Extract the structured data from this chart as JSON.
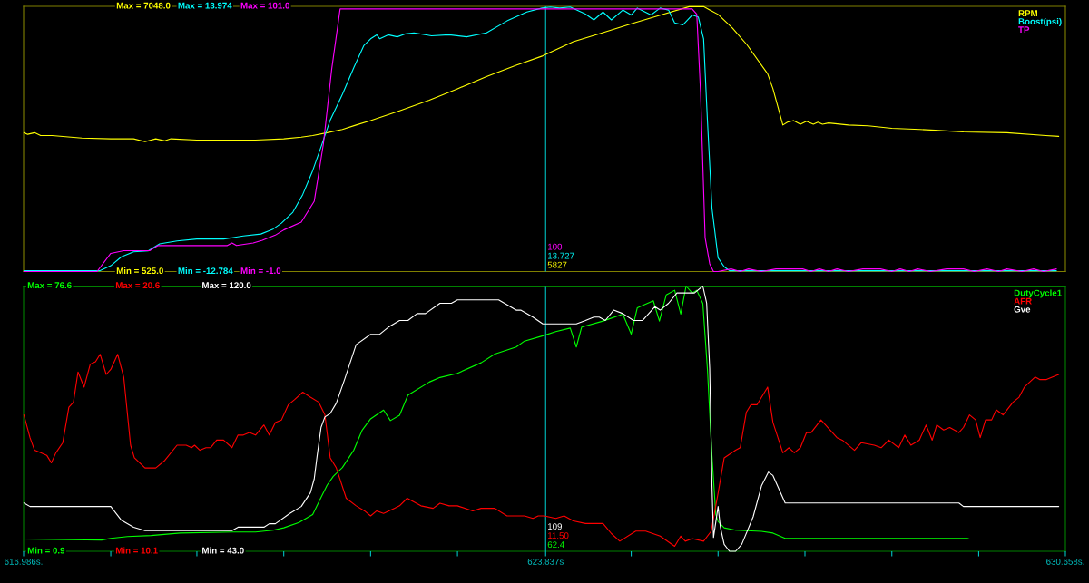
{
  "chart_data": [
    {
      "type": "line",
      "legend": "top right",
      "tick_labels": "y",
      "xlim": [
        616.986,
        630.658
      ],
      "ylim": [
        525,
        7048
      ],
      "yticks": [
        {
          "value": 525,
          "label": "Min = 525.0"
        },
        {
          "value": 7048,
          "label": "Max = 7048.0"
        }
      ],
      "y2lim": [
        -12.784,
        13.974
      ],
      "y2ticks": [
        {
          "value": -12.784,
          "label": "Min = -12.784"
        },
        {
          "value": 13.974,
          "label": "Max = 13.974"
        }
      ],
      "y3lim": [
        -1,
        101
      ],
      "y3ticks": [
        {
          "value": -1,
          "label": "Min = -1.0"
        },
        {
          "value": 101,
          "label": "Max = 101.0"
        }
      ],
      "ref_lines": [
        {
          "axis": "x",
          "value": 623.837,
          "color": "#00c0c0"
        }
      ],
      "annotations": [
        "100",
        "13.727",
        "5827"
      ],
      "series": [
        {
          "name": "RPM",
          "color": "#ffff00",
          "x": [
            616.99,
            617.04,
            617.13,
            617.21,
            617.36,
            617.75,
            618.13,
            618.43,
            618.58,
            618.72,
            618.84,
            618.92,
            619.26,
            620.03,
            620.4,
            620.63,
            620.78,
            620.97,
            621.17,
            621.35,
            621.54,
            621.92,
            622.31,
            622.68,
            623.06,
            623.45,
            623.8,
            624.2,
            624.59,
            624.96,
            625.34,
            625.72,
            625.91,
            625.99,
            626.1,
            626.29,
            626.48,
            626.75,
            626.82,
            626.95,
            627.01,
            627.09,
            627.18,
            627.26,
            627.35,
            627.41,
            627.47,
            627.55,
            627.81,
            628.07,
            628.38,
            628.75,
            628.95,
            629.32,
            629.89,
            630.4,
            630.57
          ],
          "values": [
            3940,
            3900,
            3940,
            3870,
            3870,
            3810,
            3790,
            3790,
            3720,
            3790,
            3740,
            3790,
            3760,
            3760,
            3790,
            3830,
            3870,
            3940,
            4020,
            4130,
            4240,
            4480,
            4740,
            5020,
            5320,
            5600,
            5830,
            6180,
            6400,
            6620,
            6830,
            7040,
            7040,
            6960,
            6850,
            6510,
            6100,
            5390,
            5020,
            4130,
            4200,
            4240,
            4150,
            4220,
            4150,
            4200,
            4150,
            4180,
            4130,
            4110,
            4050,
            4020,
            4000,
            3960,
            3940,
            3870,
            3850
          ]
        },
        {
          "name": "Boost(psi)",
          "color": "#00ffff",
          "axis": "y2",
          "x": [
            616.99,
            617.99,
            618.13,
            618.27,
            618.43,
            618.62,
            618.77,
            619.0,
            619.26,
            619.61,
            619.87,
            620.1,
            620.26,
            620.37,
            620.52,
            620.65,
            620.78,
            620.89,
            621.01,
            621.17,
            621.32,
            621.45,
            621.54,
            621.62,
            621.66,
            621.77,
            621.89,
            622.0,
            622.11,
            622.34,
            622.57,
            622.8,
            623.06,
            623.33,
            623.59,
            623.79,
            623.9,
            624.02,
            624.16,
            624.36,
            624.47,
            624.59,
            624.7,
            624.85,
            624.96,
            625.04,
            625.22,
            625.34,
            625.45,
            625.53,
            625.64,
            625.76,
            625.84,
            625.91,
            625.96,
            626.02,
            626.1,
            626.18,
            626.25,
            630.54
          ],
          "values": [
            -12.7,
            -12.7,
            -12.2,
            -11.3,
            -10.8,
            -10.7,
            -10.0,
            -9.7,
            -9.5,
            -9.5,
            -9.2,
            -9.0,
            -8.5,
            -7.9,
            -6.8,
            -5.0,
            -2.6,
            -0.2,
            2.5,
            5.1,
            7.8,
            10.0,
            10.7,
            11.1,
            10.7,
            11.1,
            10.9,
            11.2,
            11.3,
            11.0,
            11.1,
            10.9,
            11.3,
            12.5,
            13.4,
            13.8,
            13.9,
            13.8,
            13.9,
            13.2,
            12.6,
            13.4,
            12.6,
            13.6,
            13.1,
            13.8,
            13.1,
            13.8,
            13.6,
            12.3,
            12.1,
            13.1,
            12.9,
            10.7,
            2.5,
            -6.4,
            -11.4,
            -12.3,
            -12.7,
            -12.7
          ]
        },
        {
          "name": "TP",
          "color": "#ff00ff",
          "axis": "y3",
          "x": [
            616.99,
            617.95,
            618.13,
            618.3,
            618.64,
            618.75,
            619.66,
            619.72,
            619.78,
            620.0,
            620.12,
            620.29,
            620.4,
            620.63,
            620.8,
            620.92,
            621.03,
            621.14,
            625.76,
            625.82,
            625.87,
            625.93,
            625.99,
            626.04,
            626.1,
            626.27,
            626.39,
            626.5,
            626.67,
            626.86,
            627.21,
            627.32,
            627.43,
            627.55,
            627.66,
            627.81,
            628.0,
            628.23,
            628.38,
            628.49,
            628.61,
            628.72,
            628.89,
            629.1,
            629.32,
            629.46,
            629.63,
            629.78,
            629.89,
            630.09,
            630.24,
            630.37,
            630.54
          ],
          "values": [
            -1,
            -1,
            6,
            7,
            7,
            9,
            9,
            10,
            9,
            10,
            11,
            13,
            15,
            18,
            26,
            48,
            77,
            100,
            100,
            98,
            68,
            12,
            2,
            -1,
            -1,
            0,
            -1,
            0,
            -1,
            0,
            0,
            -1,
            0,
            -1,
            0,
            -1,
            0,
            0,
            -1,
            0,
            -1,
            0,
            -1,
            0,
            0,
            -1,
            0,
            -1,
            0,
            -1,
            0,
            -1,
            0
          ]
        }
      ]
    },
    {
      "type": "line",
      "legend": "top right",
      "xlim": [
        616.986,
        630.658
      ],
      "xticks": [
        {
          "value": 616.986,
          "label": "616.986s."
        },
        {
          "value": 618.13,
          "label": null
        },
        {
          "value": 619.26,
          "label": null
        },
        {
          "value": 620.4,
          "label": null
        },
        {
          "value": 621.54,
          "label": null
        },
        {
          "value": 622.68,
          "label": null
        },
        {
          "value": 623.837,
          "label": "623.837s"
        },
        {
          "value": 624.96,
          "label": null
        },
        {
          "value": 626.1,
          "label": null
        },
        {
          "value": 627.24,
          "label": null
        },
        {
          "value": 628.38,
          "label": null
        },
        {
          "value": 629.52,
          "label": null
        },
        {
          "value": 630.658,
          "label": "630.658s."
        }
      ],
      "ylim": [
        0.9,
        76.6
      ],
      "yticks": [
        {
          "value": 0.9,
          "label": "Min = 0.9"
        },
        {
          "value": 76.6,
          "label": "Max = 76.6"
        }
      ],
      "y2lim": [
        10.1,
        20.6
      ],
      "y2ticks": [
        {
          "value": 10.1,
          "label": "Min = 10.1"
        },
        {
          "value": 20.6,
          "label": "Max = 20.6"
        }
      ],
      "y3lim": [
        43,
        120
      ],
      "y3ticks": [
        {
          "value": 43,
          "label": "Min = 43.0"
        },
        {
          "value": 120,
          "label": "Max = 120.0"
        }
      ],
      "ref_lines": [
        {
          "axis": "x",
          "value": 623.837,
          "color": "#00c0c0"
        }
      ],
      "annotations": [
        "109",
        "11.50",
        "62.4"
      ],
      "series": [
        {
          "name": "DutyCycle1",
          "color": "#00ff00",
          "x": [
            616.99,
            618.01,
            618.13,
            618.35,
            618.66,
            619.04,
            619.72,
            620.03,
            620.26,
            620.4,
            620.6,
            620.78,
            620.89,
            620.97,
            621.05,
            621.17,
            621.32,
            621.43,
            621.54,
            621.71,
            621.8,
            621.92,
            622.03,
            622.31,
            622.45,
            622.68,
            622.99,
            623.17,
            623.45,
            623.56,
            623.8,
            623.97,
            624.16,
            624.24,
            624.31,
            624.59,
            624.85,
            624.96,
            625.04,
            625.25,
            625.33,
            625.42,
            625.53,
            625.61,
            625.68,
            625.76,
            625.82,
            625.9,
            625.96,
            626.02,
            626.07,
            626.1,
            626.18,
            626.33,
            626.67,
            626.82,
            626.98,
            629.37,
            629.4,
            630.57
          ],
          "values": [
            4.4,
            4.1,
            4.6,
            5.1,
            5.4,
            6.1,
            6.4,
            6.4,
            6.9,
            7.6,
            9.1,
            11.4,
            16.3,
            19.8,
            22.3,
            24.8,
            29.8,
            35.5,
            38.7,
            41.2,
            38.2,
            39.7,
            45.5,
            49.2,
            50.5,
            51.7,
            54.7,
            57.2,
            59.2,
            60.9,
            62.4,
            63.6,
            64.6,
            59.2,
            64.9,
            66.6,
            68.6,
            62.9,
            70.4,
            72.4,
            66.6,
            74.1,
            75.4,
            68.6,
            76.6,
            74.6,
            75.4,
            71.6,
            52.9,
            28.0,
            11.4,
            9.4,
            7.6,
            6.9,
            6.6,
            6.1,
            4.6,
            4.6,
            4.4,
            4.4
          ]
        },
        {
          "name": "AFR",
          "color": "#ff0000",
          "axis": "y2",
          "x": [
            616.99,
            617.07,
            617.13,
            617.21,
            617.29,
            617.35,
            617.41,
            617.5,
            617.58,
            617.64,
            617.7,
            617.78,
            617.86,
            617.93,
            617.99,
            618.07,
            618.13,
            618.22,
            618.3,
            618.39,
            618.44,
            618.58,
            618.72,
            618.84,
            619.0,
            619.12,
            619.19,
            619.23,
            619.3,
            619.38,
            619.44,
            619.52,
            619.61,
            619.72,
            619.8,
            619.87,
            619.95,
            620.03,
            620.14,
            620.21,
            620.29,
            620.37,
            620.46,
            620.54,
            620.65,
            620.75,
            620.86,
            620.94,
            621.01,
            621.09,
            621.22,
            621.35,
            621.46,
            621.54,
            621.62,
            621.71,
            621.85,
            621.92,
            622.02,
            622.2,
            622.36,
            622.45,
            622.57,
            622.68,
            622.88,
            622.99,
            623.17,
            623.33,
            623.56,
            623.67,
            623.74,
            623.82,
            623.97,
            624.08,
            624.2,
            624.36,
            624.51,
            624.59,
            624.7,
            624.81,
            625.02,
            625.15,
            625.34,
            625.53,
            625.61,
            625.67,
            625.76,
            625.91,
            626.01,
            626.1,
            626.18,
            626.33,
            626.39,
            626.47,
            626.53,
            626.61,
            626.75,
            626.82,
            626.95,
            627.03,
            627.1,
            627.18,
            627.26,
            627.32,
            627.45,
            627.66,
            627.73,
            627.89,
            627.98,
            628.15,
            628.24,
            628.34,
            628.47,
            628.55,
            628.63,
            628.74,
            628.83,
            628.91,
            628.97,
            629.06,
            629.14,
            629.26,
            629.32,
            629.4,
            629.48,
            629.54,
            629.61,
            629.69,
            629.75,
            629.84,
            629.97,
            630.05,
            630.12,
            630.26,
            630.32,
            630.41,
            630.57
          ],
          "values": [
            15.5,
            14.6,
            14.1,
            14.0,
            13.9,
            13.6,
            14.0,
            14.4,
            15.8,
            16.0,
            17.2,
            16.6,
            17.5,
            17.6,
            17.9,
            17.1,
            17.3,
            17.9,
            17.0,
            14.3,
            13.8,
            13.4,
            13.4,
            13.7,
            14.3,
            14.3,
            14.2,
            14.3,
            14.1,
            14.2,
            14.2,
            14.5,
            14.5,
            14.2,
            14.7,
            14.7,
            14.8,
            14.7,
            15.1,
            14.7,
            15.2,
            15.3,
            15.9,
            16.1,
            16.4,
            16.2,
            16.0,
            15.5,
            13.8,
            13.4,
            12.2,
            11.9,
            11.7,
            11.5,
            11.7,
            11.6,
            11.8,
            11.9,
            12.2,
            11.9,
            11.8,
            12.0,
            11.9,
            11.9,
            11.7,
            11.8,
            11.8,
            11.5,
            11.5,
            11.4,
            11.5,
            11.5,
            11.4,
            11.5,
            11.3,
            11.2,
            11.2,
            11.2,
            10.8,
            10.5,
            10.9,
            10.9,
            10.7,
            10.3,
            10.7,
            10.5,
            10.6,
            10.5,
            10.9,
            12.4,
            13.8,
            14.1,
            14.2,
            15.6,
            15.9,
            15.9,
            16.6,
            15.2,
            14.0,
            14.2,
            14.0,
            14.2,
            14.8,
            14.8,
            15.3,
            14.6,
            14.5,
            14.1,
            14.4,
            14.3,
            14.2,
            14.5,
            14.2,
            14.7,
            14.3,
            14.5,
            15.1,
            14.5,
            15.1,
            14.9,
            15.0,
            14.8,
            15.0,
            15.5,
            15.3,
            14.6,
            15.3,
            15.3,
            15.7,
            15.5,
            16.0,
            16.2,
            16.6,
            17.0,
            16.9,
            16.9,
            17.1
          ]
        },
        {
          "name": "Gve",
          "color": "#ffffff",
          "axis": "y3",
          "x": [
            616.99,
            617.07,
            618.13,
            618.27,
            618.43,
            618.58,
            619.72,
            619.8,
            620.14,
            620.21,
            620.29,
            620.48,
            620.63,
            620.75,
            620.8,
            620.84,
            620.89,
            620.94,
            621.01,
            621.09,
            621.2,
            621.35,
            621.54,
            621.66,
            621.77,
            621.92,
            622.03,
            622.15,
            622.26,
            622.45,
            622.6,
            622.68,
            623.22,
            623.45,
            623.51,
            623.67,
            623.8,
            623.94,
            624.24,
            624.36,
            624.47,
            624.54,
            624.62,
            624.73,
            624.85,
            624.99,
            625.11,
            625.27,
            625.34,
            625.45,
            625.56,
            625.72,
            625.79,
            625.9,
            625.95,
            625.99,
            626.02,
            626.04,
            626.1,
            626.13,
            626.18,
            626.25,
            626.33,
            626.41,
            626.56,
            626.67,
            626.76,
            626.82,
            626.98,
            629.26,
            629.32,
            630.57
          ],
          "values": [
            57,
            56,
            56,
            52,
            50,
            49,
            49,
            50,
            50,
            51,
            51,
            54,
            56,
            60,
            64,
            71,
            79,
            82,
            83,
            86,
            93,
            103,
            106,
            106,
            108,
            110,
            110,
            112,
            112,
            115,
            115,
            116,
            116,
            113,
            113,
            111,
            109,
            109,
            109,
            110,
            111,
            111,
            110,
            113,
            112,
            110,
            110,
            114,
            113,
            115,
            118,
            118,
            118,
            120,
            115,
            96,
            62,
            47,
            56,
            50,
            45,
            43,
            43,
            45,
            53,
            62,
            66,
            65,
            57,
            57,
            56,
            56
          ]
        }
      ]
    }
  ]
}
